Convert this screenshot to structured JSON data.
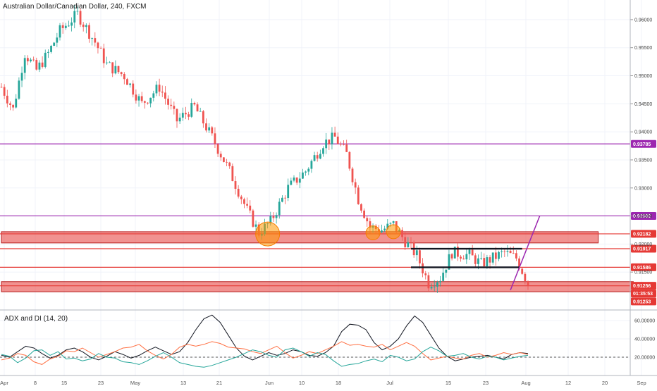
{
  "chart_data": {
    "type": "candlestick",
    "title": "Australian Dollar/Canadian Dollar, 240, FXCM",
    "price_axis": {
      "min": 0.9085,
      "max": 0.9635,
      "ticks": [
        "0.96000",
        "0.95500",
        "0.95000",
        "0.94500",
        "0.94000",
        "0.93500",
        "0.93000",
        "0.92500",
        "0.92000",
        "0.91500"
      ]
    },
    "x_axis": {
      "ticks": [
        "Apr",
        "8",
        "15",
        "23",
        "May",
        "13",
        "21",
        "Jun",
        "10",
        "18",
        "Jul",
        "15",
        "23",
        "Aug",
        "12",
        "20",
        "Sep"
      ]
    },
    "price_path": [
      {
        "day": 0,
        "price": 0.948
      },
      {
        "day": 2,
        "price": 0.944
      },
      {
        "day": 4,
        "price": 0.954
      },
      {
        "day": 6,
        "price": 0.951
      },
      {
        "day": 8,
        "price": 0.954
      },
      {
        "day": 10,
        "price": 0.958
      },
      {
        "day": 13,
        "price": 0.961
      },
      {
        "day": 16,
        "price": 0.956
      },
      {
        "day": 18,
        "price": 0.952
      },
      {
        "day": 21,
        "price": 0.95
      },
      {
        "day": 24,
        "price": 0.945
      },
      {
        "day": 27,
        "price": 0.948
      },
      {
        "day": 30,
        "price": 0.942
      },
      {
        "day": 33,
        "price": 0.9445
      },
      {
        "day": 36,
        "price": 0.939
      },
      {
        "day": 39,
        "price": 0.933
      },
      {
        "day": 42,
        "price": 0.926
      },
      {
        "day": 44,
        "price": 0.922
      },
      {
        "day": 46,
        "price": 0.924
      },
      {
        "day": 49,
        "price": 0.93
      },
      {
        "day": 52,
        "price": 0.933
      },
      {
        "day": 55,
        "price": 0.938
      },
      {
        "day": 57,
        "price": 0.939
      },
      {
        "day": 59,
        "price": 0.936
      },
      {
        "day": 61,
        "price": 0.928
      },
      {
        "day": 63,
        "price": 0.923
      },
      {
        "day": 65,
        "price": 0.9225
      },
      {
        "day": 67,
        "price": 0.9235
      },
      {
        "day": 69,
        "price": 0.9205
      },
      {
        "day": 71,
        "price": 0.918
      },
      {
        "day": 73,
        "price": 0.913
      },
      {
        "day": 75,
        "price": 0.914
      },
      {
        "day": 77,
        "price": 0.9185
      },
      {
        "day": 80,
        "price": 0.918
      },
      {
        "day": 82,
        "price": 0.9165
      },
      {
        "day": 84,
        "price": 0.9175
      },
      {
        "day": 86,
        "price": 0.9185
      },
      {
        "day": 88,
        "price": 0.9175
      },
      {
        "day": 90,
        "price": 0.913
      }
    ],
    "horizontal_levels": [
      {
        "price": 0.93785,
        "label": "0.93785",
        "color": "#9c27b0"
      },
      {
        "price": 0.92502,
        "label": "0.92502",
        "color": "#9c27b0"
      },
      {
        "price": 0.92182,
        "label": "0.92182",
        "color": "#e53935"
      },
      {
        "price": 0.91917,
        "label": "0.91917",
        "color": "#e53935"
      },
      {
        "price": 0.91586,
        "label": "0.91586",
        "color": "#e53935"
      },
      {
        "price": 0.91256,
        "label": "0.91256",
        "color": "#e53935"
      },
      {
        "price": 0.91253,
        "label": "0.91253",
        "color": "#e53935"
      }
    ],
    "countdown_label": "01:35:53",
    "zones": [
      {
        "from_day": 0,
        "to_day": 102,
        "low": 0.9202,
        "high": 0.9222
      },
      {
        "from_day": 0,
        "to_day": 108,
        "low": 0.9115,
        "high": 0.9133
      }
    ],
    "markers": [
      {
        "day": 45.5,
        "price": 0.9218
      },
      {
        "day": 63.5,
        "price": 0.922
      },
      {
        "day": 67,
        "price": 0.9222
      }
    ],
    "channel": {
      "from_day": 70,
      "to_day": 89,
      "top": 0.91917,
      "bottom": 0.91586
    },
    "projection": {
      "from_day": 87,
      "from_price": 0.9118,
      "to_day": 92,
      "to_price": 0.925
    },
    "indicator": {
      "name": "ADX and DI (14, 20)",
      "ticks": [
        "60.00000",
        "40.00000",
        "20.00000"
      ],
      "min": 0,
      "max": 70,
      "threshold": 20,
      "adx": [
        22,
        20,
        26,
        32,
        30,
        24,
        19,
        22,
        28,
        30,
        26,
        20,
        17,
        21,
        26,
        23,
        19,
        22,
        27,
        31,
        27,
        23,
        26,
        36,
        50,
        62,
        66,
        58,
        44,
        30,
        21,
        17,
        21,
        25,
        22,
        24,
        28,
        26,
        22,
        21,
        25,
        32,
        48,
        56,
        55,
        50,
        36,
        28,
        32,
        40,
        54,
        65,
        58,
        44,
        30,
        21,
        16,
        18,
        20,
        21,
        22,
        20,
        18,
        23,
        25,
        24
      ],
      "di_plus": [
        17,
        19,
        24,
        22,
        15,
        12,
        18,
        21,
        27,
        26,
        30,
        25,
        20,
        23,
        26,
        30,
        31,
        34,
        27,
        22,
        18,
        23,
        31,
        34,
        32,
        34,
        37,
        35,
        31,
        30,
        29,
        26,
        24,
        28,
        32,
        25,
        19,
        22,
        26,
        24,
        28,
        32,
        37,
        33,
        34,
        32,
        31,
        34,
        28,
        32,
        36,
        32,
        24,
        17,
        19,
        21,
        19,
        18,
        22,
        24,
        20,
        22,
        25,
        23,
        25,
        23
      ],
      "di_minus": [
        23,
        21,
        14,
        19,
        27,
        28,
        22,
        26,
        18,
        19,
        16,
        18,
        24,
        20,
        19,
        15,
        14,
        12,
        16,
        21,
        25,
        20,
        14,
        12,
        10,
        9,
        11,
        14,
        17,
        20,
        24,
        28,
        26,
        22,
        20,
        28,
        30,
        26,
        21,
        25,
        23,
        16,
        10,
        12,
        13,
        16,
        18,
        15,
        22,
        20,
        16,
        18,
        26,
        31,
        27,
        21,
        22,
        24,
        20,
        18,
        21,
        20,
        17,
        19,
        21,
        22
      ]
    }
  }
}
